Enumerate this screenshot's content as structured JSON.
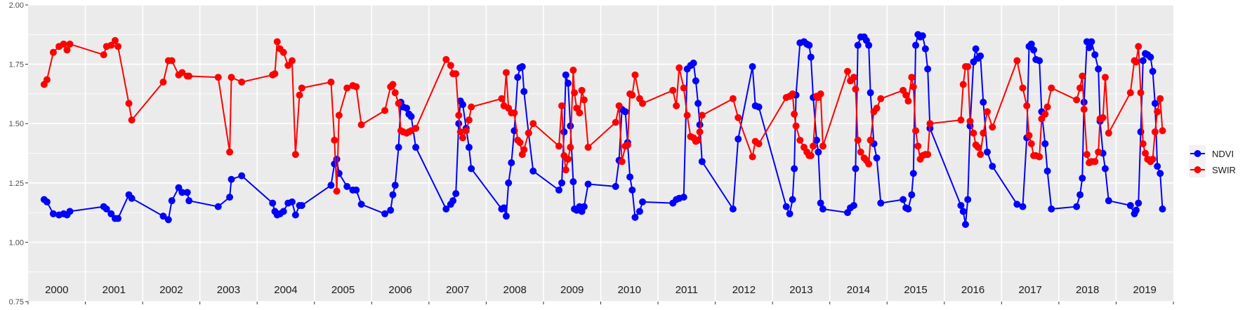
{
  "chart_data": {
    "type": "line",
    "title": "",
    "xlabel": "",
    "ylabel": "",
    "xlim": [
      2000,
      2020
    ],
    "ylim": [
      0.75,
      2.0
    ],
    "y_ticks": [
      "0.75",
      "1.00",
      "1.25",
      "1.50",
      "1.75",
      "2.00"
    ],
    "y_tick_values": [
      0.75,
      1.0,
      1.25,
      1.5,
      1.75,
      2.0
    ],
    "x_tick_labels": [
      "2000",
      "2001",
      "2002",
      "2003",
      "2004",
      "2005",
      "2006",
      "2007",
      "2008",
      "2009",
      "2010",
      "2011",
      "2012",
      "2013",
      "2014",
      "2015",
      "2016",
      "2017",
      "2018",
      "2019"
    ],
    "grid": true,
    "legend_position": "right",
    "dates": [
      2000.28,
      2000.33,
      2000.44,
      2000.54,
      2000.62,
      2000.68,
      2000.73,
      2001.32,
      2001.37,
      2001.45,
      2001.52,
      2001.57,
      2001.76,
      2001.81,
      2002.36,
      2002.45,
      2002.51,
      2002.63,
      2002.69,
      2002.78,
      2002.81,
      2003.32,
      2003.52,
      2003.55,
      2003.73,
      2004.27,
      2004.31,
      2004.35,
      2004.4,
      2004.46,
      2004.54,
      2004.61,
      2004.67,
      2004.74,
      2004.78,
      2005.29,
      2005.35,
      2005.39,
      2005.43,
      2005.57,
      2005.67,
      2005.73,
      2005.82,
      2006.23,
      2006.33,
      2006.37,
      2006.41,
      2006.47,
      2006.51,
      2006.55,
      2006.61,
      2006.65,
      2006.69,
      2006.77,
      2007.3,
      2007.38,
      2007.42,
      2007.47,
      2007.52,
      2007.55,
      2007.59,
      2007.65,
      2007.7,
      2007.74,
      2008.27,
      2008.31,
      2008.35,
      2008.39,
      2008.44,
      2008.49,
      2008.55,
      2008.59,
      2008.63,
      2008.66,
      2008.74,
      2008.82,
      2009.27,
      2009.32,
      2009.36,
      2009.39,
      2009.43,
      2009.47,
      2009.52,
      2009.54,
      2009.58,
      2009.63,
      2009.67,
      2009.71,
      2009.78,
      2010.26,
      2010.32,
      2010.37,
      2010.43,
      2010.47,
      2010.51,
      2010.55,
      2010.6,
      2010.68,
      2010.73,
      2011.26,
      2011.32,
      2011.37,
      2011.45,
      2011.51,
      2011.57,
      2011.62,
      2011.66,
      2011.7,
      2011.73,
      2011.77,
      2012.31,
      2012.4,
      2012.65,
      2012.7,
      2012.76,
      2013.24,
      2013.3,
      2013.35,
      2013.38,
      2013.41,
      2013.48,
      2013.55,
      2013.6,
      2013.64,
      2013.67,
      2013.71,
      2013.77,
      2013.8,
      2013.84,
      2013.88,
      2014.31,
      2014.36,
      2014.42,
      2014.45,
      2014.49,
      2014.54,
      2014.6,
      2014.64,
      2014.68,
      2014.71,
      2014.77,
      2014.82,
      2014.89,
      2015.28,
      2015.33,
      2015.37,
      2015.43,
      2015.46,
      2015.5,
      2015.54,
      2015.58,
      2015.62,
      2015.67,
      2015.71,
      2015.75,
      2016.29,
      2016.33,
      2016.37,
      2016.41,
      2016.45,
      2016.51,
      2016.55,
      2016.59,
      2016.63,
      2016.68,
      2016.75,
      2016.84,
      2017.27,
      2017.37,
      2017.44,
      2017.48,
      2017.52,
      2017.56,
      2017.6,
      2017.66,
      2017.7,
      2017.76,
      2017.8,
      2017.87,
      2018.31,
      2018.37,
      2018.41,
      2018.44,
      2018.49,
      2018.53,
      2018.57,
      2018.63,
      2018.69,
      2018.72,
      2018.77,
      2018.81,
      2018.87,
      2019.25,
      2019.32,
      2019.35,
      2019.39,
      2019.43,
      2019.47,
      2019.51,
      2019.55,
      2019.6,
      2019.64,
      2019.68,
      2019.72,
      2019.77,
      2019.81
    ],
    "series": [
      {
        "name": "NDVI",
        "color": "#0000ff",
        "values": [
          1.18,
          1.17,
          1.12,
          1.115,
          1.12,
          1.115,
          1.13,
          1.15,
          1.14,
          1.12,
          1.1,
          1.1,
          1.2,
          1.185,
          1.11,
          1.095,
          1.175,
          1.23,
          1.21,
          1.21,
          1.175,
          1.15,
          1.19,
          1.265,
          1.28,
          1.165,
          1.13,
          1.115,
          1.12,
          1.13,
          1.165,
          1.17,
          1.115,
          1.155,
          1.155,
          1.24,
          1.33,
          1.35,
          1.29,
          1.235,
          1.22,
          1.22,
          1.16,
          1.12,
          1.135,
          1.2,
          1.24,
          1.4,
          1.59,
          1.57,
          1.565,
          1.54,
          1.53,
          1.4,
          1.14,
          1.16,
          1.175,
          1.205,
          1.5,
          1.595,
          1.58,
          1.48,
          1.4,
          1.31,
          1.14,
          1.145,
          1.11,
          1.25,
          1.335,
          1.47,
          1.695,
          1.735,
          1.74,
          1.635,
          1.46,
          1.3,
          1.22,
          1.25,
          1.465,
          1.705,
          1.67,
          1.49,
          1.255,
          1.14,
          1.135,
          1.15,
          1.13,
          1.15,
          1.245,
          1.235,
          1.345,
          1.56,
          1.55,
          1.42,
          1.275,
          1.22,
          1.105,
          1.13,
          1.17,
          1.165,
          1.18,
          1.185,
          1.19,
          1.73,
          1.745,
          1.755,
          1.68,
          1.585,
          1.495,
          1.34,
          1.14,
          1.435,
          1.74,
          1.575,
          1.57,
          1.15,
          1.12,
          1.18,
          1.31,
          1.62,
          1.84,
          1.845,
          1.835,
          1.83,
          1.78,
          1.61,
          1.43,
          1.38,
          1.165,
          1.14,
          1.125,
          1.145,
          1.155,
          1.31,
          1.83,
          1.865,
          1.865,
          1.85,
          1.83,
          1.63,
          1.415,
          1.355,
          1.165,
          1.18,
          1.145,
          1.14,
          1.2,
          1.29,
          1.83,
          1.875,
          1.865,
          1.87,
          1.815,
          1.73,
          1.48,
          1.155,
          1.13,
          1.075,
          1.18,
          1.49,
          1.76,
          1.815,
          1.775,
          1.785,
          1.59,
          1.38,
          1.32,
          1.16,
          1.15,
          1.44,
          1.825,
          1.835,
          1.81,
          1.77,
          1.765,
          1.55,
          1.415,
          1.3,
          1.14,
          1.15,
          1.2,
          1.27,
          1.59,
          1.845,
          1.82,
          1.845,
          1.79,
          1.73,
          1.51,
          1.375,
          1.31,
          1.175,
          1.155,
          1.12,
          1.135,
          1.165,
          1.465,
          1.765,
          1.795,
          1.79,
          1.78,
          1.72,
          1.585,
          1.32,
          1.29,
          1.14
        ]
      },
      {
        "name": "SWIR",
        "color": "#ff0000",
        "values": [
          1.665,
          1.685,
          1.8,
          1.825,
          1.835,
          1.81,
          1.835,
          1.79,
          1.825,
          1.83,
          1.85,
          1.825,
          1.585,
          1.515,
          1.675,
          1.765,
          1.765,
          1.705,
          1.715,
          1.7,
          1.7,
          1.695,
          1.38,
          1.695,
          1.675,
          1.705,
          1.71,
          1.845,
          1.815,
          1.8,
          1.745,
          1.765,
          1.37,
          1.62,
          1.65,
          1.675,
          1.43,
          1.215,
          1.535,
          1.65,
          1.66,
          1.655,
          1.495,
          1.555,
          1.655,
          1.665,
          1.63,
          1.585,
          1.47,
          1.465,
          1.46,
          1.465,
          1.47,
          1.48,
          1.77,
          1.745,
          1.71,
          1.71,
          1.535,
          1.465,
          1.44,
          1.47,
          1.515,
          1.57,
          1.605,
          1.575,
          1.715,
          1.565,
          1.545,
          1.545,
          1.43,
          1.42,
          1.37,
          1.39,
          1.46,
          1.5,
          1.405,
          1.575,
          1.365,
          1.305,
          1.35,
          1.4,
          1.725,
          1.63,
          1.565,
          1.545,
          1.64,
          1.6,
          1.4,
          1.505,
          1.575,
          1.34,
          1.405,
          1.41,
          1.625,
          1.62,
          1.705,
          1.605,
          1.585,
          1.64,
          1.575,
          1.735,
          1.65,
          1.535,
          1.445,
          1.44,
          1.425,
          1.43,
          1.465,
          1.535,
          1.605,
          1.525,
          1.36,
          1.425,
          1.415,
          1.61,
          1.615,
          1.625,
          1.54,
          1.49,
          1.43,
          1.4,
          1.38,
          1.365,
          1.365,
          1.405,
          1.615,
          1.61,
          1.625,
          1.405,
          1.72,
          1.68,
          1.695,
          1.645,
          1.43,
          1.38,
          1.355,
          1.345,
          1.33,
          1.43,
          1.55,
          1.565,
          1.605,
          1.64,
          1.62,
          1.595,
          1.695,
          1.655,
          1.47,
          1.405,
          1.35,
          1.365,
          1.37,
          1.37,
          1.5,
          1.515,
          1.665,
          1.74,
          1.74,
          1.51,
          1.46,
          1.41,
          1.4,
          1.37,
          1.46,
          1.55,
          1.485,
          1.765,
          1.65,
          1.575,
          1.45,
          1.415,
          1.365,
          1.365,
          1.36,
          1.52,
          1.54,
          1.57,
          1.65,
          1.6,
          1.65,
          1.7,
          1.56,
          1.37,
          1.335,
          1.34,
          1.34,
          1.38,
          1.52,
          1.525,
          1.695,
          1.46,
          1.63,
          1.765,
          1.76,
          1.825,
          1.63,
          1.415,
          1.375,
          1.35,
          1.34,
          1.35,
          1.465,
          1.55,
          1.605,
          1.47
        ]
      }
    ]
  }
}
